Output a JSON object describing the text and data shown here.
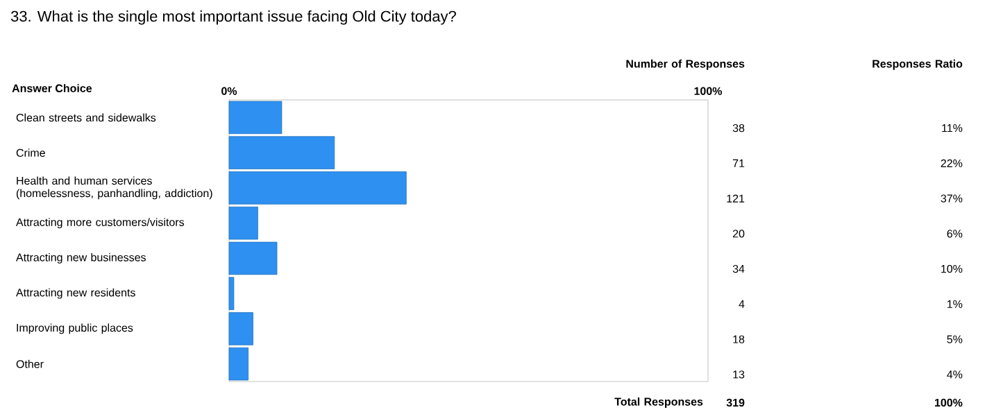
{
  "chart_data": {
    "type": "bar",
    "orientation": "horizontal",
    "title": "33. What is the single most important issue facing Old City today?",
    "ylabel": "Answer Choice",
    "categories": [
      "Clean streets and sidewalks",
      "Crime",
      "Health and human services (homelessness, panhandling, addiction)",
      "Attracting more customers/visitors",
      "Attracting new businesses",
      "Attracting new residents",
      "Improving public places",
      "Other"
    ],
    "values": [
      11,
      22,
      37,
      6,
      10,
      1,
      5,
      4
    ],
    "value_labels": [
      "11%",
      "22%",
      "37%",
      "6%",
      "10%",
      "1%",
      "5%",
      "4%"
    ],
    "color": "#2e90f0",
    "xlim": [
      0,
      100
    ],
    "xticks": [
      {
        "value": 0,
        "label": "0%"
      },
      {
        "value": 100,
        "label": "100%"
      }
    ],
    "grid": false,
    "annotations": [
      "Number of Responses",
      "Responses Ratio",
      "Total Responses",
      "319",
      "100%",
      "38",
      "71",
      "121",
      "20",
      "34",
      "4",
      "18",
      "13"
    ]
  }
}
